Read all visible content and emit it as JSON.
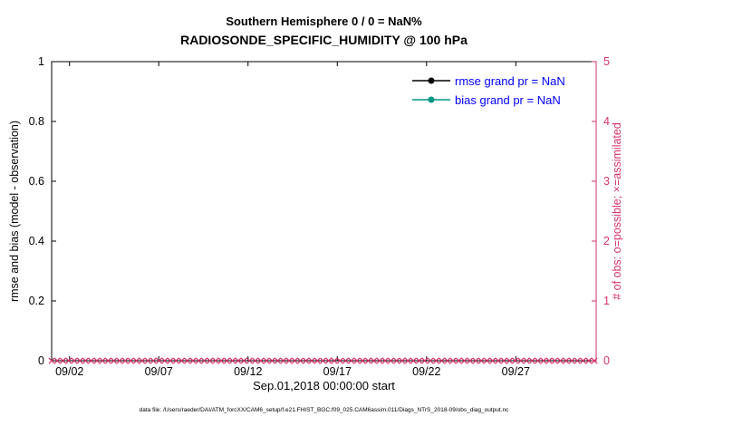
{
  "figure": {
    "title_line1": "Southern Hemisphere 0 / 0 = NaN%",
    "title_line2": "RADIOSONDE_SPECIFIC_HUMIDITY @ 100 hPa",
    "footer": "data file: /Users/raeder/DAI/ATM_forcXX/CAM6_setup/f.e21.FHIST_BGC.f09_025.CAM6assim.011/Diags_NTrS_2018-09/obs_diag_output.nc"
  },
  "colors": {
    "axis_left": "#000000",
    "axis_right": "#d6336c",
    "legend_text": "#0000ff",
    "rmse_series": "#000000",
    "bias_series": "#009688",
    "obs_markers": "#d6336c"
  },
  "chart_data": {
    "type": "line",
    "title": "Southern Hemisphere 0 / 0 = NaN% | RADIOSONDE_SPECIFIC_HUMIDITY @ 100 hPa",
    "xlabel": "Sep.01,2018 00:00:00 start",
    "ylabel_left": "rmse and bias (model - observation)",
    "ylabel_right": "# of obs: o=possible; ×=assimilated",
    "xlim": [
      1,
      31.5
    ],
    "xticks": [
      {
        "v": 2,
        "label": "09/02"
      },
      {
        "v": 7,
        "label": "09/07"
      },
      {
        "v": 12,
        "label": "09/12"
      },
      {
        "v": 17,
        "label": "09/17"
      },
      {
        "v": 22,
        "label": "09/22"
      },
      {
        "v": 27,
        "label": "09/27"
      }
    ],
    "ylim_left": [
      0,
      1
    ],
    "yticks_left": [
      {
        "v": 0,
        "label": "0"
      },
      {
        "v": 0.2,
        "label": "0.2"
      },
      {
        "v": 0.4,
        "label": "0.4"
      },
      {
        "v": 0.6,
        "label": "0.6"
      },
      {
        "v": 0.8,
        "label": "0.8"
      },
      {
        "v": 1,
        "label": "1"
      }
    ],
    "ylim_right": [
      0,
      5
    ],
    "yticks_right": [
      {
        "v": 0,
        "label": "0"
      },
      {
        "v": 1,
        "label": "1"
      },
      {
        "v": 2,
        "label": "2"
      },
      {
        "v": 3,
        "label": "3"
      },
      {
        "v": 4,
        "label": "4"
      },
      {
        "v": 5,
        "label": "5"
      }
    ],
    "series": [
      {
        "name": "rmse grand pr = NaN",
        "color": "#000000",
        "marker": "filled-circle",
        "values": []
      },
      {
        "name": "bias grand pr = NaN",
        "color": "#009688",
        "marker": "filled-circle",
        "values": []
      }
    ],
    "obs_markers": {
      "symbol": "x",
      "color": "#d6336c",
      "y_right_axis": 0,
      "x_start": 1,
      "x_end": 31.4,
      "count": 97,
      "note": "dense row of crimson x markers along y=0 (assimilated obs count = 0)"
    },
    "grid": false,
    "legend_position": "top-right-inside"
  }
}
